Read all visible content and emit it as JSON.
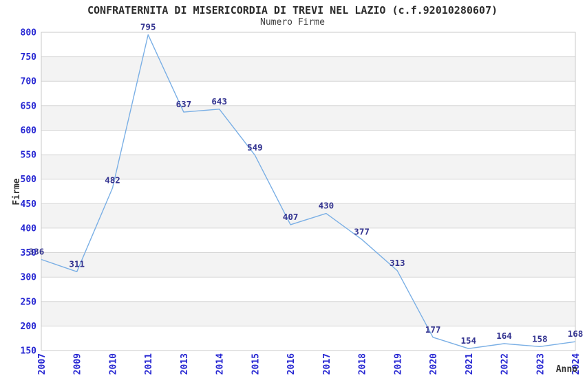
{
  "chart_data": {
    "type": "line",
    "title": "CONFRATERNITA DI MISERICORDIA DI TREVI NEL LAZIO (c.f.92010280607)",
    "subtitle": "Numero Firme",
    "xlabel": "Anno",
    "ylabel": "Firme",
    "categories": [
      "2007",
      "2009",
      "2010",
      "2011",
      "2013",
      "2014",
      "2015",
      "2016",
      "2017",
      "2018",
      "2019",
      "2020",
      "2021",
      "2022",
      "2023",
      "2024"
    ],
    "values": [
      336,
      311,
      482,
      795,
      637,
      643,
      549,
      407,
      430,
      377,
      313,
      177,
      154,
      164,
      158,
      168
    ],
    "ylim": [
      150,
      800
    ],
    "ytick_step": 50,
    "grid": "horizontal",
    "bands": "alternating",
    "legend": "none",
    "data_labels": true,
    "colors": {
      "line": "#7aafe5",
      "tick_label": "#2626d2",
      "data_label": "#333390",
      "band_gray": "#f3f3f3",
      "gridline": "#d6d6d6",
      "border": "#c9c9c9",
      "title": "#2b2b2b",
      "subtitle": "#3d3d3d",
      "axis_title": "#333333"
    }
  }
}
